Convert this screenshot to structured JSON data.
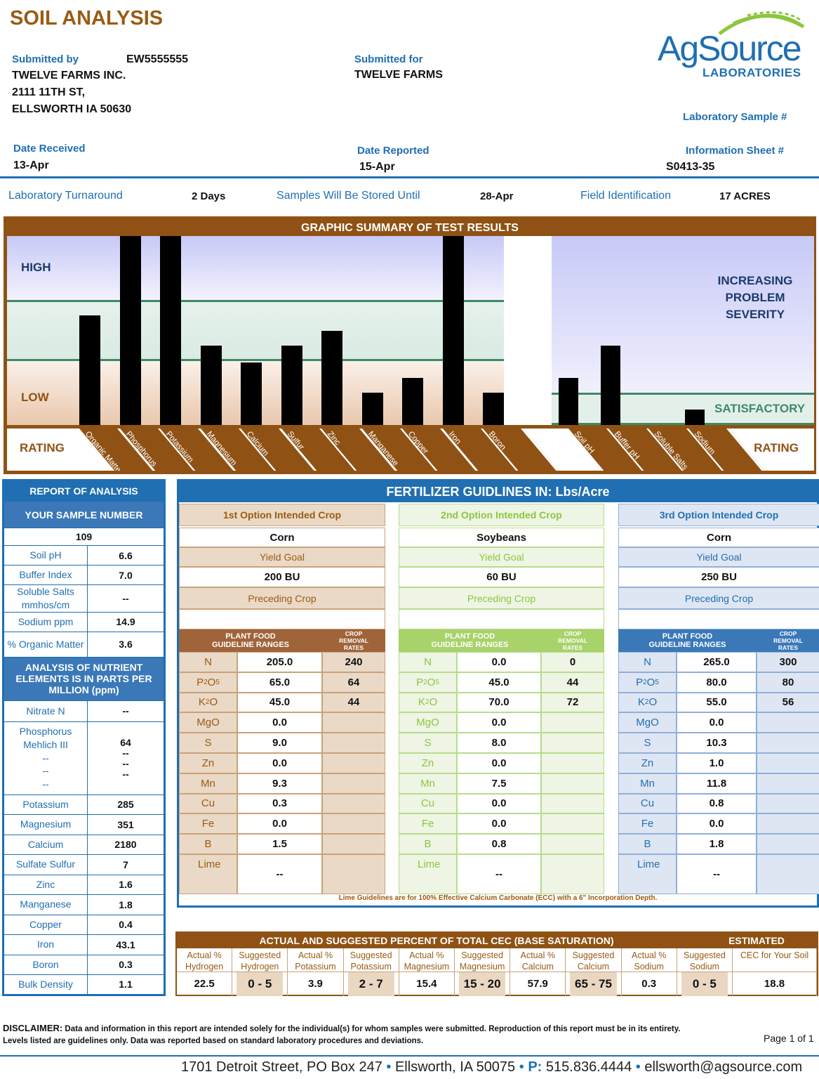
{
  "title": "SOIL ANALYSIS",
  "logo": {
    "name": "AgSource",
    "sub": "LABORATORIES"
  },
  "header": {
    "submitted_by_label": "Submitted by",
    "submitted_by_id": "EW5555555",
    "submitted_by_lines": [
      "TWELVE FARMS INC.",
      "2111 11TH ST,",
      "ELLSWORTH IA  50630"
    ],
    "submitted_for_label": "Submitted for",
    "submitted_for": "TWELVE FARMS",
    "lab_sample_label": "Laboratory Sample #",
    "date_received_label": "Date Received",
    "date_received": "13-Apr",
    "date_reported_label": "Date Reported",
    "date_reported": "15-Apr",
    "info_sheet_label": "Information Sheet #",
    "info_sheet": "S0413-35",
    "turnaround_label": "Laboratory Turnaround",
    "turnaround": "2 Days",
    "stored_label": "Samples Will Be Stored Until",
    "stored": "28-Apr",
    "field_label": "Field Identification",
    "field": "17 ACRES"
  },
  "summary": {
    "title": "GRAPHIC SUMMARY OF TEST RESULTS",
    "high": "HIGH",
    "low": "LOW",
    "rating": "RATING",
    "severity": [
      "INCREASING",
      "PROBLEM",
      "SEVERITY"
    ],
    "satisfactory": "SATISFACTORY",
    "nutrient_levels": [
      {
        "name": "Organic Matter",
        "level": 0.58
      },
      {
        "name": "Phosphorus",
        "level": 1.0
      },
      {
        "name": "Potassium",
        "level": 1.0
      },
      {
        "name": "Magnesium",
        "level": 0.42
      },
      {
        "name": "Calcium",
        "level": 0.33
      },
      {
        "name": "Sulfur",
        "level": 0.42
      },
      {
        "name": "Zinc",
        "level": 0.5
      },
      {
        "name": "Manganese",
        "level": 0.17
      },
      {
        "name": "Copper",
        "level": 0.25
      },
      {
        "name": "Iron",
        "level": 1.0
      },
      {
        "name": "Boron",
        "level": 0.17
      }
    ],
    "problem_levels": [
      {
        "name": "Soil pH",
        "level": 0.25
      },
      {
        "name": "Buffer pH",
        "level": 0.42
      },
      {
        "name": "Soluble Salts",
        "level": 0
      },
      {
        "name": "Sodium",
        "level": 0.08
      }
    ]
  },
  "report": {
    "title": "REPORT OF ANALYSIS",
    "sample_label": "YOUR SAMPLE NUMBER",
    "sample": "109",
    "top_rows": [
      [
        "Soil pH",
        "6.6"
      ],
      [
        "Buffer Index",
        "7.0"
      ],
      [
        "Soluble Salts mmhos/cm",
        "--"
      ],
      [
        "Sodium ppm",
        "14.9"
      ],
      [
        "% Organic Matter",
        "3.6"
      ]
    ],
    "section": "ANALYSIS OF NUTRIENT ELEMENTS IS IN PARTS PER MILLION (ppm)",
    "nitrate": [
      "Nitrate N",
      "--"
    ],
    "phos_labels": [
      "Phosphorus",
      "Mehlich III",
      "--",
      "--",
      "--"
    ],
    "phos_values": [
      "64",
      "--",
      "--",
      "--"
    ],
    "rows": [
      [
        "Potassium",
        "285"
      ],
      [
        "Magnesium",
        "351"
      ],
      [
        "Calcium",
        "2180"
      ],
      [
        "Sulfate Sulfur",
        "7"
      ],
      [
        "Zinc",
        "1.6"
      ],
      [
        "Manganese",
        "1.8"
      ],
      [
        "Copper",
        "0.4"
      ],
      [
        "Iron",
        "43.1"
      ],
      [
        "Boron",
        "0.3"
      ],
      [
        "Bulk Density",
        "1.1"
      ]
    ]
  },
  "fertilizer": {
    "title": "FERTILIZER GUIDLINES IN:  Lbs/Acre",
    "yield_label": "Yield Goal",
    "preceding_label": "Preceding Crop",
    "pf_label": "PLANT FOOD GUIDELINE RANGES",
    "cr_label": "CROP REMOVAL RATES",
    "nutrients": [
      "N",
      "P2O5",
      "K2O",
      "MgO",
      "S",
      "Zn",
      "Mn",
      "Cu",
      "Fe",
      "B",
      "Lime"
    ],
    "options": [
      {
        "label": "1st Option Intended Crop",
        "crop": "Corn",
        "yield": "200 BU",
        "preceding": "",
        "color": "#9a5b13",
        "guide": [
          "205.0",
          "65.0",
          "45.0",
          "0.0",
          "9.0",
          "0.0",
          "9.3",
          "0.3",
          "0.0",
          "1.5",
          "--"
        ],
        "removal": [
          "240",
          "64",
          "44",
          "",
          "",
          "",
          "",
          "",
          "",
          "",
          ""
        ]
      },
      {
        "label": "2nd Option Intended Crop",
        "crop": "Soybeans",
        "yield": "60 BU",
        "preceding": "",
        "color": "#8cc63f",
        "guide": [
          "0.0",
          "45.0",
          "70.0",
          "0.0",
          "8.0",
          "0.0",
          "7.5",
          "0.0",
          "0.0",
          "0.8",
          "--"
        ],
        "removal": [
          "0",
          "44",
          "72",
          "",
          "",
          "",
          "",
          "",
          "",
          "",
          ""
        ]
      },
      {
        "label": "3rd Option Intended Crop",
        "crop": "Corn",
        "yield": "250 BU",
        "preceding": "",
        "color": "#1f6fb2",
        "guide": [
          "265.0",
          "80.0",
          "55.0",
          "0.0",
          "10.3",
          "1.0",
          "11.8",
          "0.8",
          "0.0",
          "1.8",
          "--"
        ],
        "removal": [
          "300",
          "80",
          "56",
          "",
          "",
          "",
          "",
          "",
          "",
          "",
          ""
        ]
      }
    ],
    "note": "Lime Guidelines are for 100% Effective Calcium Carbonate (ECC) with a 6\" Incorporation Depth."
  },
  "cec": {
    "title": "ACTUAL AND SUGGESTED PERCENT OF TOTAL CEC (BASE SATURATION)",
    "estimated": "ESTIMATED",
    "columns": [
      {
        "label": "Actual % Hydrogen",
        "value": "22.5"
      },
      {
        "label": "Suggested Hydrogen",
        "value": "0 - 5"
      },
      {
        "label": "Actual % Potassium",
        "value": "3.9"
      },
      {
        "label": "Suggested Potassium",
        "value": "2 - 7"
      },
      {
        "label": "Actual % Magnesium",
        "value": "15.4"
      },
      {
        "label": "Suggested Magnesium",
        "value": "15 - 20"
      },
      {
        "label": "Actual % Calcium",
        "value": "57.9"
      },
      {
        "label": "Suggested Calcium",
        "value": "65 - 75"
      },
      {
        "label": "Actual % Sodium",
        "value": "0.3"
      },
      {
        "label": "Suggested Sodium",
        "value": "0 - 5"
      },
      {
        "label": "CEC for Your Soil",
        "value": "18.8"
      }
    ]
  },
  "disclaimer": {
    "label": "DISCLAIMER:",
    "text": " Data and information in this report are intended solely for the individual(s) for whom samples were submitted. Reproduction of this report must be in its entirety. Levels listed are guidelines only. Data was reported based on standard laboratory procedures and deviations."
  },
  "page": "Page 1 of 1",
  "footer": {
    "street": "1701 Detroit Street, PO Box 247",
    "city": "Ellsworth, IA 50075",
    "phone_label": "P:",
    "phone": "515.836.4444",
    "email": "ellsworth@agsource.com"
  }
}
